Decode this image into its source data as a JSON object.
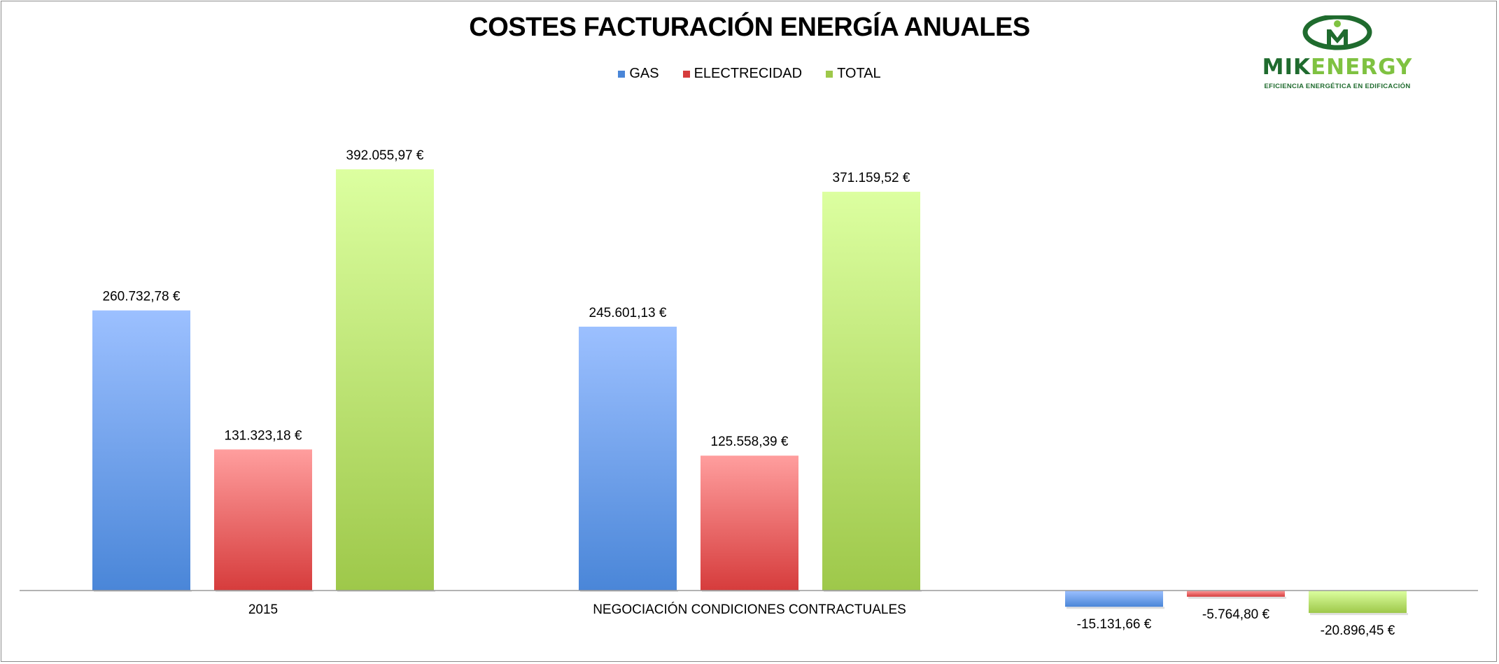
{
  "chart_data": {
    "type": "bar",
    "title": "COSTES FACTURACIÓN ENERGÍA ANUALES",
    "categories": [
      "2015",
      "NEGOCIACIÓN CONDICIONES CONTRACTUALES",
      ""
    ],
    "series": [
      {
        "name": "GAS",
        "values": [
          260732.78,
          245601.13,
          -15131.66
        ],
        "labels": [
          "260.732,78 €",
          "245.601,13 €",
          "-15.131,66 €"
        ],
        "color": "#4a86d8",
        "color_top": "#9cc0ff"
      },
      {
        "name": "ELECTRECIDAD",
        "values": [
          131323.18,
          125558.39,
          -5764.8
        ],
        "labels": [
          "131.323,18 €",
          "125.558,39 €",
          "-5.764,80 €"
        ],
        "color": "#d63c3c",
        "color_top": "#ff9e9e"
      },
      {
        "name": "TOTAL",
        "values": [
          392055.97,
          371159.52,
          -20896.45
        ],
        "labels": [
          "392.055,97 €",
          "371.159,52 €",
          "-20.896,45 €"
        ],
        "color": "#9ec84a",
        "color_top": "#dcffa0"
      }
    ],
    "ylim": [
      -25000,
      400000
    ],
    "grid": false,
    "legend": "top-center"
  },
  "logo": {
    "brand_part1": "MIK",
    "brand_part2": "ENERGY",
    "tagline": "EFICIENCIA ENERGÉTICA EN EDIFICACIÓN",
    "colors": {
      "dark": "#1f6b2e",
      "light": "#7fc241"
    }
  }
}
